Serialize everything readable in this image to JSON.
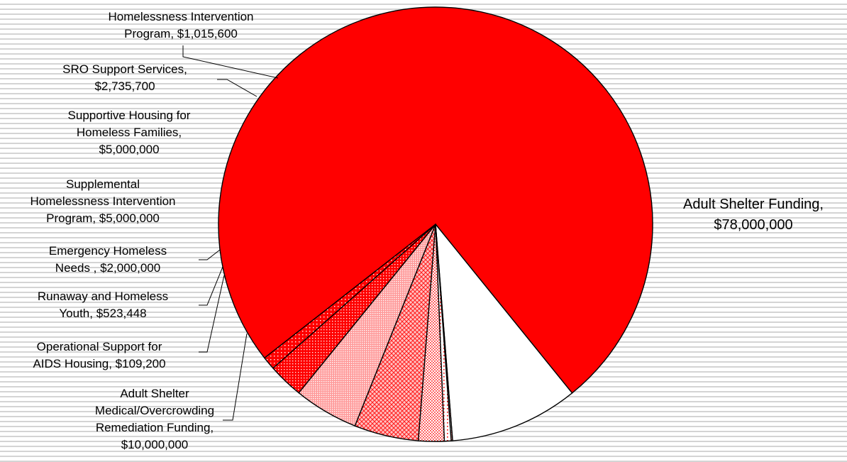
{
  "chart_data": {
    "type": "pie",
    "slices": [
      {
        "label": [
          "Adult Shelter Funding,",
          "$78,000,000"
        ],
        "value": 78000000,
        "color": "#ff0000",
        "pattern": "solid"
      },
      {
        "label": [
          "Adult Shelter",
          "Medical/Overcrowding",
          "Remediation Funding,",
          "$10,000,000"
        ],
        "value": 10000000,
        "color": "#ffffff",
        "pattern": "solid"
      },
      {
        "label": [
          "Operational Support for",
          "AIDS Housing,  $109,200"
        ],
        "value": 109200,
        "color": "#ff0000",
        "pattern": "fine-dots"
      },
      {
        "label": [
          "Runaway and Homeless",
          "Youth,  $523,448"
        ],
        "value": 523448,
        "color": "#ff0000",
        "pattern": "sparse-dots"
      },
      {
        "label": [
          "Emergency Homeless",
          "Needs ,  $2,000,000"
        ],
        "value": 2000000,
        "color": "#ff0000",
        "pattern": "light-dots"
      },
      {
        "label": [
          "Supplemental",
          "Homelessness Intervention",
          "Program,  $5,000,000"
        ],
        "value": 5000000,
        "color": "#ff0000",
        "pattern": "diamond"
      },
      {
        "label": [
          "Supportive Housing for",
          "Homeless Families,",
          "$5,000,000"
        ],
        "value": 5000000,
        "color": "#ff0000",
        "pattern": "medium-dots"
      },
      {
        "label": [
          "SRO Support Services,",
          "$2,735,700"
        ],
        "value": 2735700,
        "color": "#ff0000",
        "pattern": "dense-dots"
      },
      {
        "label": [
          "Homelessness Intervention",
          "Program,  $1,015,600"
        ],
        "value": 1015600,
        "color": "#ff0000",
        "pattern": "dark-dots"
      }
    ]
  }
}
